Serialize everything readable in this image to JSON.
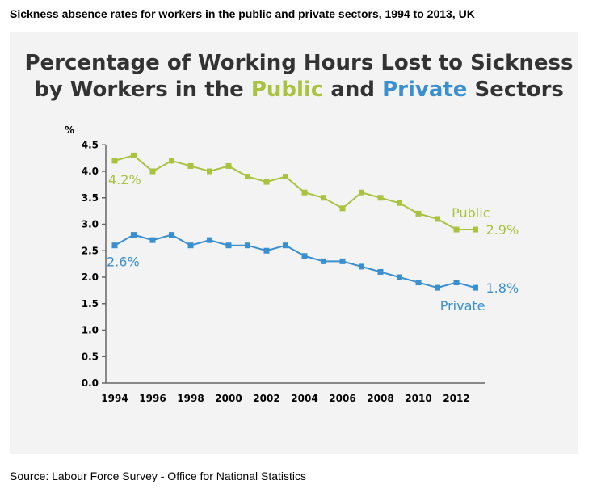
{
  "page": {
    "heading": "Sickness absence rates for workers in the public and private sectors, 1994 to 2013, UK",
    "source": "Source: Labour Force Survey - Office for National Statistics"
  },
  "colors": {
    "public": "#a9c23f",
    "private": "#3a8fd0",
    "title": "#333333",
    "panel": "#f3f3f3"
  },
  "chart_data": {
    "type": "line",
    "title_line1": "Percentage of Working Hours Lost to Sickness",
    "title_line2_prefix": "by Workers in the",
    "title_public_word": "Public",
    "title_and_word": "and",
    "title_private_word": "Private",
    "title_sectors_word": "Sectors",
    "ylabel": "%",
    "xlabel": "",
    "ylim": [
      0,
      4.5
    ],
    "xlim": [
      1994,
      2013
    ],
    "grid": false,
    "yticks": [
      "0.0",
      "0.5",
      "1.0",
      "1.5",
      "2.0",
      "2.5",
      "3.0",
      "3.5",
      "4.0",
      "4.5"
    ],
    "xticks": [
      "1994",
      "1996",
      "1998",
      "2000",
      "2002",
      "2004",
      "2006",
      "2008",
      "2010",
      "2012"
    ],
    "x": [
      1994,
      1995,
      1996,
      1997,
      1998,
      1999,
      2000,
      2001,
      2002,
      2003,
      2004,
      2005,
      2006,
      2007,
      2008,
      2009,
      2010,
      2011,
      2012,
      2013
    ],
    "series": [
      {
        "name": "Public",
        "color": "#a9c23f",
        "values": [
          4.2,
          4.3,
          4.0,
          4.2,
          4.1,
          4.0,
          4.1,
          3.9,
          3.8,
          3.9,
          3.6,
          3.5,
          3.3,
          3.6,
          3.5,
          3.4,
          3.2,
          3.1,
          2.9,
          2.9
        ],
        "start_label": "4.2%",
        "end_label": "2.9%"
      },
      {
        "name": "Private",
        "color": "#3a8fd0",
        "values": [
          2.6,
          2.8,
          2.7,
          2.8,
          2.6,
          2.7,
          2.6,
          2.6,
          2.5,
          2.6,
          2.4,
          2.3,
          2.3,
          2.2,
          2.1,
          2.0,
          1.9,
          1.8,
          1.9,
          1.8
        ],
        "start_label": "2.6%",
        "end_label": "1.8%"
      }
    ]
  }
}
